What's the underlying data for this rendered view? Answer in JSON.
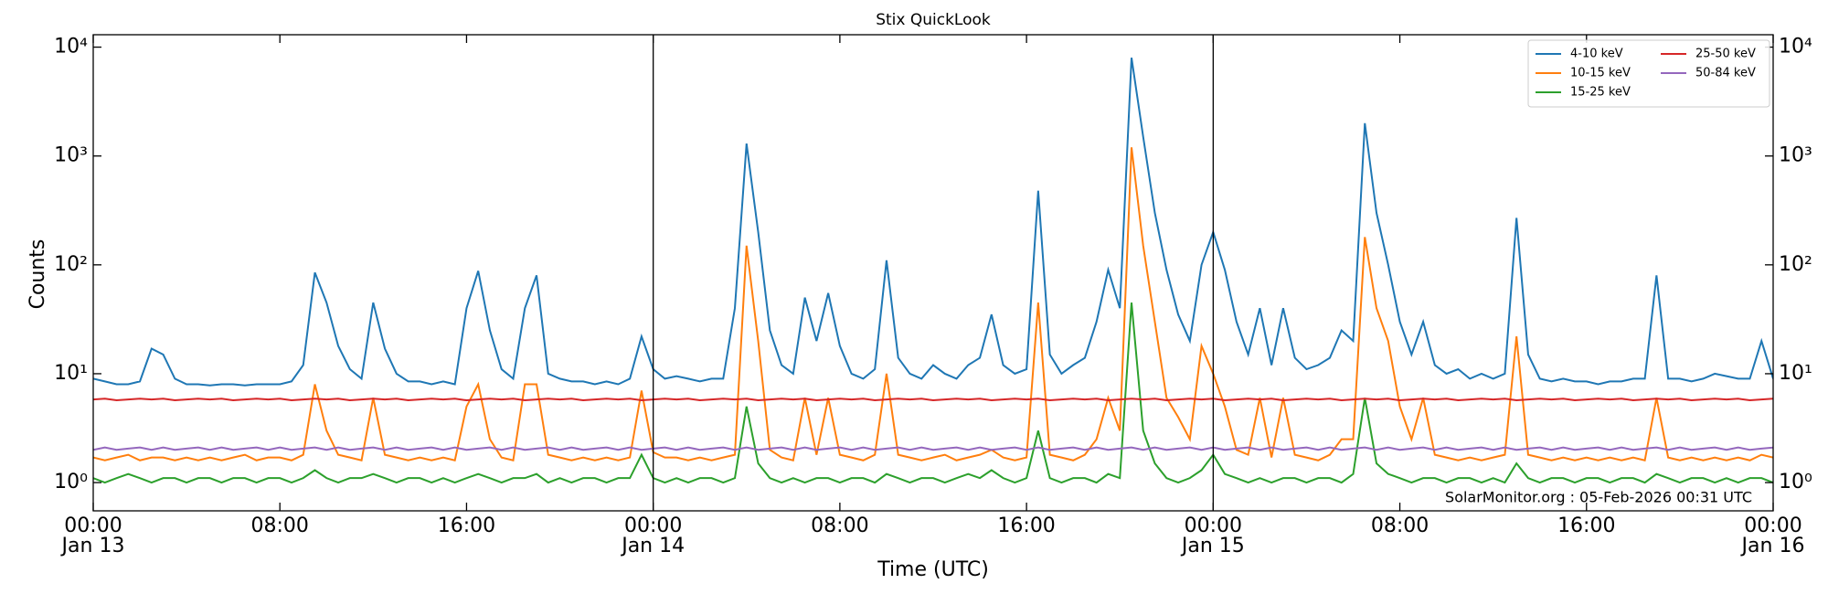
{
  "chart_data": {
    "type": "line",
    "title": "Stix QuickLook",
    "x_label": "Time (UTC)",
    "y_label": "Counts",
    "annotation": "SolarMonitor.org : 05-Feb-2026 00:31 UTC",
    "yscale": "log",
    "legend": "upper right",
    "xlim": [
      "Jan 13 00:00",
      "Jan 16 00:00"
    ],
    "xticks": [
      {
        "value": "Jan 13 00:00",
        "label": "00:00"
      },
      {
        "value": "Jan 13 08:00",
        "label": "08:00"
      },
      {
        "value": "Jan 13 16:00",
        "label": "16:00"
      },
      {
        "value": "Jan 14 00:00",
        "label": "00:00"
      },
      {
        "value": "Jan 14 08:00",
        "label": "08:00"
      },
      {
        "value": "Jan 14 16:00",
        "label": "16:00"
      },
      {
        "value": "Jan 15 00:00",
        "label": "00:00"
      },
      {
        "value": "Jan 15 08:00",
        "label": "08:00"
      },
      {
        "value": "Jan 15 16:00",
        "label": "16:00"
      },
      {
        "value": "Jan 16 00:00",
        "label": "00:00"
      }
    ],
    "xdate_labels": [
      {
        "value": "Jan 13 00:00",
        "label": "Jan 13"
      },
      {
        "value": "Jan 14 00:00",
        "label": "Jan 14"
      },
      {
        "value": "Jan 15 00:00",
        "label": "Jan 15"
      },
      {
        "value": "Jan 16 00:00",
        "label": "Jan 16"
      }
    ],
    "vlines": [
      "Jan 14 00:00",
      "Jan 15 00:00"
    ],
    "ylim": [
      0.55,
      13000
    ],
    "yticks": [
      {
        "value": 1,
        "label": "10⁰"
      },
      {
        "value": 10,
        "label": "10¹"
      },
      {
        "value": 100,
        "label": "10²"
      },
      {
        "value": 1000,
        "label": "10³"
      },
      {
        "value": 10000,
        "label": "10⁴"
      }
    ],
    "x": [
      "Jan 13 00:00",
      "Jan 13 00:30",
      "Jan 13 01:00",
      "Jan 13 01:30",
      "Jan 13 02:00",
      "Jan 13 02:30",
      "Jan 13 03:00",
      "Jan 13 03:30",
      "Jan 13 04:00",
      "Jan 13 04:30",
      "Jan 13 05:00",
      "Jan 13 05:30",
      "Jan 13 06:00",
      "Jan 13 06:30",
      "Jan 13 07:00",
      "Jan 13 07:30",
      "Jan 13 08:00",
      "Jan 13 08:30",
      "Jan 13 09:00",
      "Jan 13 09:30",
      "Jan 13 10:00",
      "Jan 13 10:30",
      "Jan 13 11:00",
      "Jan 13 11:30",
      "Jan 13 12:00",
      "Jan 13 12:30",
      "Jan 13 13:00",
      "Jan 13 13:30",
      "Jan 13 14:00",
      "Jan 13 14:30",
      "Jan 13 15:00",
      "Jan 13 15:30",
      "Jan 13 16:00",
      "Jan 13 16:30",
      "Jan 13 17:00",
      "Jan 13 17:30",
      "Jan 13 18:00",
      "Jan 13 18:30",
      "Jan 13 19:00",
      "Jan 13 19:30",
      "Jan 13 20:00",
      "Jan 13 20:30",
      "Jan 13 21:00",
      "Jan 13 21:30",
      "Jan 13 22:00",
      "Jan 13 22:30",
      "Jan 13 23:00",
      "Jan 13 23:30",
      "Jan 14 00:00",
      "Jan 14 00:30",
      "Jan 14 01:00",
      "Jan 14 01:30",
      "Jan 14 02:00",
      "Jan 14 02:30",
      "Jan 14 03:00",
      "Jan 14 03:30",
      "Jan 14 04:00",
      "Jan 14 04:30",
      "Jan 14 05:00",
      "Jan 14 05:30",
      "Jan 14 06:00",
      "Jan 14 06:30",
      "Jan 14 07:00",
      "Jan 14 07:30",
      "Jan 14 08:00",
      "Jan 14 08:30",
      "Jan 14 09:00",
      "Jan 14 09:30",
      "Jan 14 10:00",
      "Jan 14 10:30",
      "Jan 14 11:00",
      "Jan 14 11:30",
      "Jan 14 12:00",
      "Jan 14 12:30",
      "Jan 14 13:00",
      "Jan 14 13:30",
      "Jan 14 14:00",
      "Jan 14 14:30",
      "Jan 14 15:00",
      "Jan 14 15:30",
      "Jan 14 16:00",
      "Jan 14 16:30",
      "Jan 14 17:00",
      "Jan 14 17:30",
      "Jan 14 18:00",
      "Jan 14 18:30",
      "Jan 14 19:00",
      "Jan 14 19:30",
      "Jan 14 20:00",
      "Jan 14 20:30",
      "Jan 14 21:00",
      "Jan 14 21:30",
      "Jan 14 22:00",
      "Jan 14 22:30",
      "Jan 14 23:00",
      "Jan 14 23:30",
      "Jan 15 00:00",
      "Jan 15 00:30",
      "Jan 15 01:00",
      "Jan 15 01:30",
      "Jan 15 02:00",
      "Jan 15 02:30",
      "Jan 15 03:00",
      "Jan 15 03:30",
      "Jan 15 04:00",
      "Jan 15 04:30",
      "Jan 15 05:00",
      "Jan 15 05:30",
      "Jan 15 06:00",
      "Jan 15 06:30",
      "Jan 15 07:00",
      "Jan 15 07:30",
      "Jan 15 08:00",
      "Jan 15 08:30",
      "Jan 15 09:00",
      "Jan 15 09:30",
      "Jan 15 10:00",
      "Jan 15 10:30",
      "Jan 15 11:00",
      "Jan 15 11:30",
      "Jan 15 12:00",
      "Jan 15 12:30",
      "Jan 15 13:00",
      "Jan 15 13:30",
      "Jan 15 14:00",
      "Jan 15 14:30",
      "Jan 15 15:00",
      "Jan 15 15:30",
      "Jan 15 16:00",
      "Jan 15 16:30",
      "Jan 15 17:00",
      "Jan 15 17:30",
      "Jan 15 18:00",
      "Jan 15 18:30",
      "Jan 15 19:00",
      "Jan 15 19:30",
      "Jan 15 20:00",
      "Jan 15 20:30",
      "Jan 15 21:00",
      "Jan 15 21:30",
      "Jan 15 22:00",
      "Jan 15 22:30",
      "Jan 15 23:00",
      "Jan 15 23:30",
      "Jan 16 00:00"
    ],
    "series": [
      {
        "name": "4-10 keV",
        "color": "#1f77b4",
        "values": [
          9,
          8.5,
          8,
          8,
          8.5,
          17,
          15,
          9,
          8,
          8,
          7.8,
          8,
          8,
          7.8,
          8,
          8,
          8,
          8.5,
          12,
          85,
          45,
          18,
          11,
          9,
          45,
          17,
          10,
          8.5,
          8.5,
          8,
          8.5,
          8,
          40,
          88,
          25,
          11,
          9,
          40,
          80,
          10,
          9,
          8.5,
          8.5,
          8,
          8.5,
          8,
          9,
          22,
          11,
          9,
          9.5,
          9,
          8.5,
          9,
          9,
          40,
          1300,
          200,
          25,
          12,
          10,
          50,
          20,
          55,
          18,
          10,
          9,
          11,
          110,
          14,
          10,
          9,
          12,
          10,
          9,
          12,
          14,
          35,
          12,
          10,
          11,
          480,
          15,
          10,
          12,
          14,
          30,
          90,
          40,
          8000,
          1500,
          300,
          90,
          35,
          20,
          100,
          200,
          90,
          30,
          15,
          40,
          12,
          40,
          14,
          11,
          12,
          14,
          25,
          20,
          2000,
          300,
          100,
          30,
          15,
          30,
          12,
          10,
          11,
          9,
          10,
          9,
          10,
          270,
          15,
          9,
          8.5,
          9,
          8.5,
          8.5,
          8,
          8.5,
          8.5,
          9,
          9,
          80,
          9,
          9,
          8.5,
          9,
          10,
          9.5,
          9,
          9,
          20,
          9
        ]
      },
      {
        "name": "10-15 keV",
        "color": "#ff7f0e",
        "values": [
          1.7,
          1.6,
          1.7,
          1.8,
          1.6,
          1.7,
          1.7,
          1.6,
          1.7,
          1.6,
          1.7,
          1.6,
          1.7,
          1.8,
          1.6,
          1.7,
          1.7,
          1.6,
          1.8,
          8,
          3,
          1.8,
          1.7,
          1.6,
          6,
          1.8,
          1.7,
          1.6,
          1.7,
          1.6,
          1.7,
          1.6,
          5,
          8,
          2.5,
          1.7,
          1.6,
          8,
          8,
          1.8,
          1.7,
          1.6,
          1.7,
          1.6,
          1.7,
          1.6,
          1.7,
          7,
          1.9,
          1.7,
          1.7,
          1.6,
          1.7,
          1.6,
          1.7,
          1.8,
          150,
          20,
          2,
          1.7,
          1.6,
          6,
          1.8,
          6,
          1.8,
          1.7,
          1.6,
          1.8,
          10,
          1.8,
          1.7,
          1.6,
          1.7,
          1.8,
          1.6,
          1.7,
          1.8,
          2,
          1.7,
          1.6,
          1.7,
          45,
          1.8,
          1.7,
          1.6,
          1.8,
          2.5,
          6,
          3,
          1200,
          150,
          30,
          6,
          4,
          2.5,
          18,
          10,
          5,
          2,
          1.8,
          6,
          1.7,
          6,
          1.8,
          1.7,
          1.6,
          1.8,
          2.5,
          2.5,
          180,
          40,
          20,
          5,
          2.5,
          6,
          1.8,
          1.7,
          1.6,
          1.7,
          1.6,
          1.7,
          1.8,
          22,
          1.8,
          1.7,
          1.6,
          1.7,
          1.6,
          1.7,
          1.6,
          1.7,
          1.6,
          1.7,
          1.6,
          6,
          1.7,
          1.6,
          1.7,
          1.6,
          1.7,
          1.6,
          1.7,
          1.6,
          1.8,
          1.7
        ]
      },
      {
        "name": "15-25 keV",
        "color": "#2ca02c",
        "values": [
          1.1,
          1.0,
          1.1,
          1.2,
          1.1,
          1.0,
          1.1,
          1.1,
          1.0,
          1.1,
          1.1,
          1.0,
          1.1,
          1.1,
          1.0,
          1.1,
          1.1,
          1.0,
          1.1,
          1.3,
          1.1,
          1.0,
          1.1,
          1.1,
          1.2,
          1.1,
          1.0,
          1.1,
          1.1,
          1.0,
          1.1,
          1.0,
          1.1,
          1.2,
          1.1,
          1.0,
          1.1,
          1.1,
          1.2,
          1.0,
          1.1,
          1.0,
          1.1,
          1.1,
          1.0,
          1.1,
          1.1,
          1.8,
          1.1,
          1.0,
          1.1,
          1.0,
          1.1,
          1.1,
          1.0,
          1.1,
          5,
          1.5,
          1.1,
          1.0,
          1.1,
          1.0,
          1.1,
          1.1,
          1.0,
          1.1,
          1.1,
          1.0,
          1.2,
          1.1,
          1.0,
          1.1,
          1.1,
          1.0,
          1.1,
          1.2,
          1.1,
          1.3,
          1.1,
          1.0,
          1.1,
          3,
          1.1,
          1.0,
          1.1,
          1.1,
          1.0,
          1.2,
          1.1,
          45,
          3,
          1.5,
          1.1,
          1.0,
          1.1,
          1.3,
          1.8,
          1.2,
          1.1,
          1.0,
          1.1,
          1.0,
          1.1,
          1.1,
          1.0,
          1.1,
          1.1,
          1.0,
          1.2,
          6,
          1.5,
          1.2,
          1.1,
          1.0,
          1.1,
          1.1,
          1.0,
          1.1,
          1.1,
          1.0,
          1.1,
          1.0,
          1.5,
          1.1,
          1.0,
          1.1,
          1.1,
          1.0,
          1.1,
          1.1,
          1.0,
          1.1,
          1.1,
          1.0,
          1.2,
          1.1,
          1.0,
          1.1,
          1.1,
          1.0,
          1.1,
          1.0,
          1.1,
          1.1,
          1.0
        ]
      },
      {
        "name": "25-50 keV",
        "color": "#d62728",
        "values": [
          5.8,
          5.9,
          5.7,
          5.8,
          5.9,
          5.8,
          5.9,
          5.7,
          5.8,
          5.9,
          5.8,
          5.9,
          5.7,
          5.8,
          5.9,
          5.8,
          5.9,
          5.7,
          5.8,
          5.9,
          5.8,
          5.9,
          5.7,
          5.8,
          5.9,
          5.8,
          5.9,
          5.7,
          5.8,
          5.9,
          5.8,
          5.9,
          5.7,
          5.8,
          5.9,
          5.8,
          5.9,
          5.7,
          5.8,
          5.9,
          5.8,
          5.9,
          5.7,
          5.8,
          5.9,
          5.8,
          5.9,
          5.7,
          5.8,
          5.9,
          5.8,
          5.9,
          5.7,
          5.8,
          5.9,
          5.8,
          5.9,
          5.7,
          5.8,
          5.9,
          5.8,
          5.9,
          5.7,
          5.8,
          5.9,
          5.8,
          5.9,
          5.7,
          5.8,
          5.9,
          5.8,
          5.9,
          5.7,
          5.8,
          5.9,
          5.8,
          5.9,
          5.7,
          5.8,
          5.9,
          5.8,
          5.9,
          5.7,
          5.8,
          5.9,
          5.8,
          5.9,
          5.7,
          5.8,
          5.9,
          5.8,
          5.9,
          5.7,
          5.8,
          5.9,
          5.8,
          5.9,
          5.7,
          5.8,
          5.9,
          5.8,
          5.9,
          5.7,
          5.8,
          5.9,
          5.8,
          5.9,
          5.7,
          5.8,
          5.9,
          5.8,
          5.9,
          5.7,
          5.8,
          5.9,
          5.8,
          5.9,
          5.7,
          5.8,
          5.9,
          5.8,
          5.9,
          5.7,
          5.8,
          5.9,
          5.8,
          5.9,
          5.7,
          5.8,
          5.9,
          5.8,
          5.9,
          5.7,
          5.8,
          5.9,
          5.8,
          5.9,
          5.7,
          5.8,
          5.9,
          5.8,
          5.9,
          5.7,
          5.8,
          5.9
        ]
      },
      {
        "name": "50-84 keV",
        "color": "#9467bd",
        "values": [
          2.0,
          2.1,
          2.0,
          2.05,
          2.1,
          2.0,
          2.1,
          2.0,
          2.05,
          2.1,
          2.0,
          2.1,
          2.0,
          2.05,
          2.1,
          2.0,
          2.1,
          2.0,
          2.05,
          2.1,
          2.0,
          2.1,
          2.0,
          2.05,
          2.1,
          2.0,
          2.1,
          2.0,
          2.05,
          2.1,
          2.0,
          2.1,
          2.0,
          2.05,
          2.1,
          2.0,
          2.1,
          2.0,
          2.05,
          2.1,
          2.0,
          2.1,
          2.0,
          2.05,
          2.1,
          2.0,
          2.1,
          2.0,
          2.05,
          2.1,
          2.0,
          2.1,
          2.0,
          2.05,
          2.1,
          2.0,
          2.1,
          2.0,
          2.05,
          2.1,
          2.0,
          2.1,
          2.0,
          2.05,
          2.1,
          2.0,
          2.1,
          2.0,
          2.05,
          2.1,
          2.0,
          2.1,
          2.0,
          2.05,
          2.1,
          2.0,
          2.1,
          2.0,
          2.05,
          2.1,
          2.0,
          2.1,
          2.0,
          2.05,
          2.1,
          2.0,
          2.1,
          2.0,
          2.05,
          2.1,
          2.0,
          2.1,
          2.0,
          2.05,
          2.1,
          2.0,
          2.1,
          2.0,
          2.05,
          2.1,
          2.0,
          2.1,
          2.0,
          2.05,
          2.1,
          2.0,
          2.1,
          2.0,
          2.05,
          2.1,
          2.0,
          2.1,
          2.0,
          2.05,
          2.1,
          2.0,
          2.1,
          2.0,
          2.05,
          2.1,
          2.0,
          2.1,
          2.0,
          2.05,
          2.1,
          2.0,
          2.1,
          2.0,
          2.05,
          2.1,
          2.0,
          2.1,
          2.0,
          2.05,
          2.1,
          2.0,
          2.1,
          2.0,
          2.05,
          2.1,
          2.0,
          2.1,
          2.0,
          2.05,
          2.1
        ]
      }
    ]
  }
}
